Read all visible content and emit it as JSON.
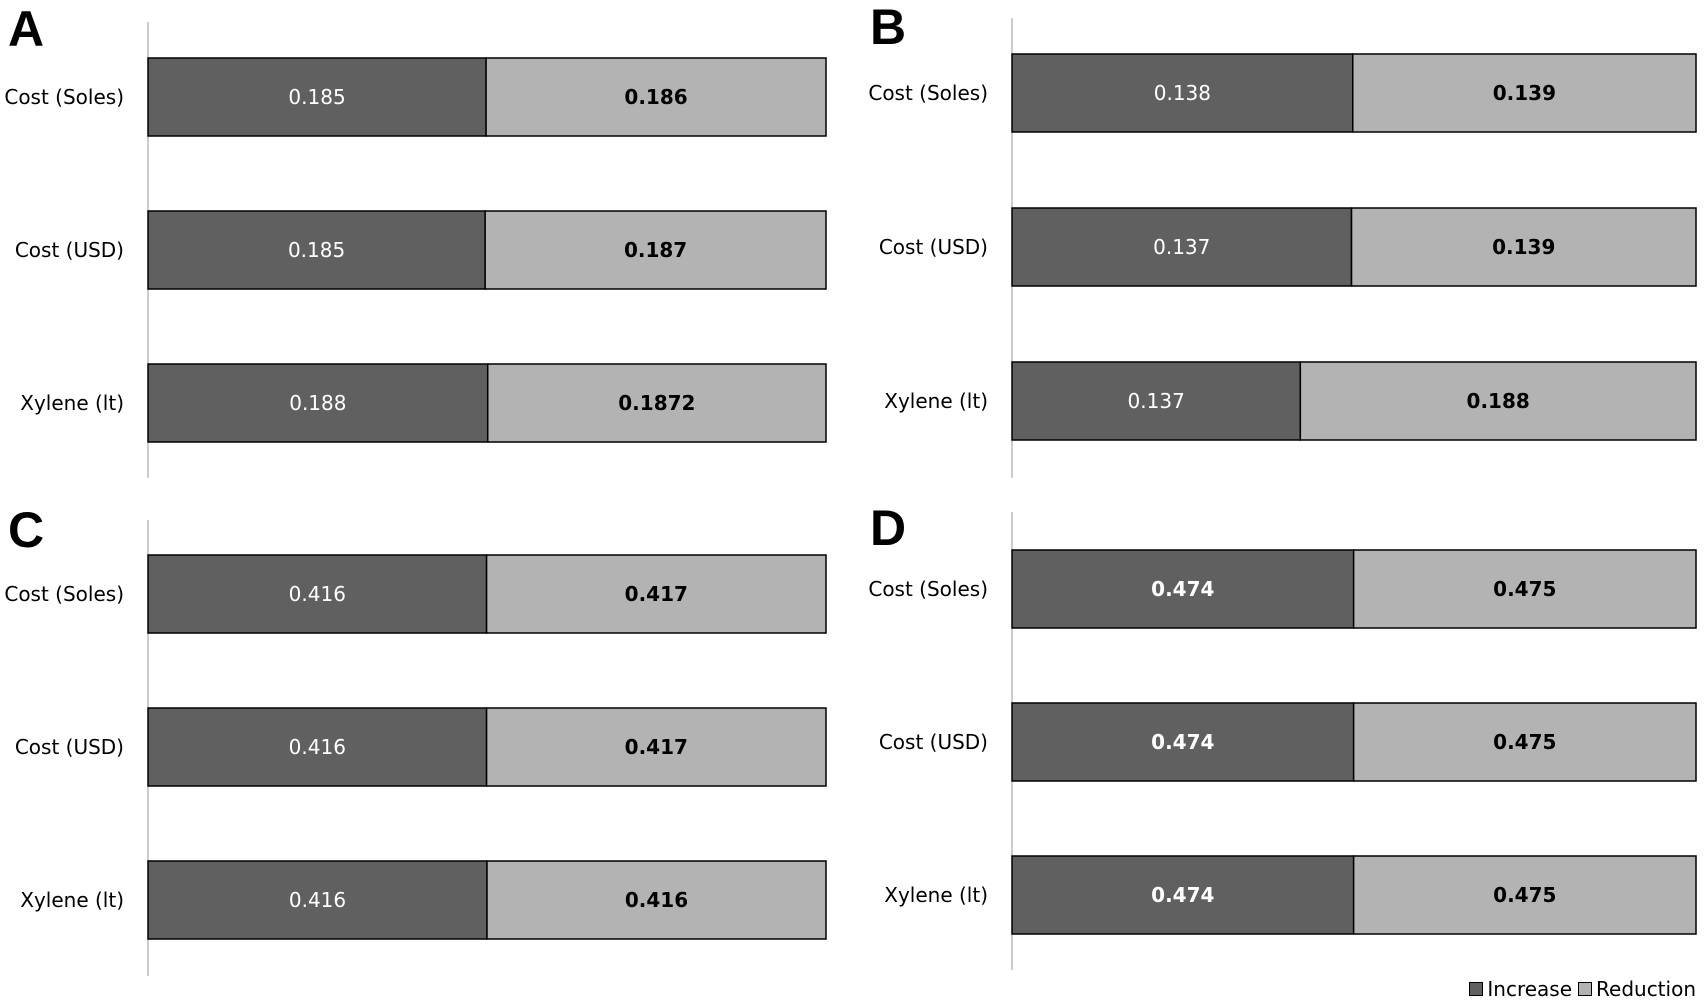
{
  "colors": {
    "increase": "#606060",
    "reduction": "#b3b3b3",
    "axis": "#999999",
    "border": "#000000"
  },
  "legend": {
    "increase_label": "Increase",
    "reduction_label": "Reduction"
  },
  "chart_data": [
    {
      "type": "bar",
      "orientation": "horizontal-stacked",
      "panel_label": "A",
      "categories": [
        "Cost (Soles)",
        "Cost (USD)",
        "Xylene (lt)"
      ],
      "series": [
        {
          "name": "Increase",
          "values": [
            0.185,
            0.185,
            0.188
          ],
          "labels": [
            "0.185",
            "0.185",
            "0.188"
          ]
        },
        {
          "name": "Reduction",
          "values": [
            0.186,
            0.187,
            0.1872
          ],
          "labels": [
            "0.186",
            "0.187",
            "0.1872"
          ]
        }
      ],
      "increase_label_bold": false
    },
    {
      "type": "bar",
      "orientation": "horizontal-stacked",
      "panel_label": "B",
      "categories": [
        "Cost (Soles)",
        "Cost (USD)",
        "Xylene (lt)"
      ],
      "series": [
        {
          "name": "Increase",
          "values": [
            0.138,
            0.137,
            0.137
          ],
          "labels": [
            "0.138",
            "0.137",
            "0.137"
          ]
        },
        {
          "name": "Reduction",
          "values": [
            0.139,
            0.139,
            0.188
          ],
          "labels": [
            "0.139",
            "0.139",
            "0.188"
          ]
        }
      ],
      "increase_label_bold": false
    },
    {
      "type": "bar",
      "orientation": "horizontal-stacked",
      "panel_label": "C",
      "categories": [
        "Cost (Soles)",
        "Cost (USD)",
        "Xylene (lt)"
      ],
      "series": [
        {
          "name": "Increase",
          "values": [
            0.416,
            0.416,
            0.416
          ],
          "labels": [
            "0.416",
            "0.416",
            "0.416"
          ]
        },
        {
          "name": "Reduction",
          "values": [
            0.417,
            0.417,
            0.416
          ],
          "labels": [
            "0.417",
            "0.417",
            "0.416"
          ]
        }
      ],
      "increase_label_bold": false
    },
    {
      "type": "bar",
      "orientation": "horizontal-stacked",
      "panel_label": "D",
      "categories": [
        "Cost (Soles)",
        "Cost (USD)",
        "Xylene (lt)"
      ],
      "series": [
        {
          "name": "Increase",
          "values": [
            0.474,
            0.474,
            0.474
          ],
          "labels": [
            "0.474",
            "0.474",
            "0.474"
          ]
        },
        {
          "name": "Reduction",
          "values": [
            0.475,
            0.475,
            0.475
          ],
          "labels": [
            "0.475",
            "0.475",
            "0.475"
          ]
        }
      ],
      "increase_label_bold": true
    }
  ]
}
